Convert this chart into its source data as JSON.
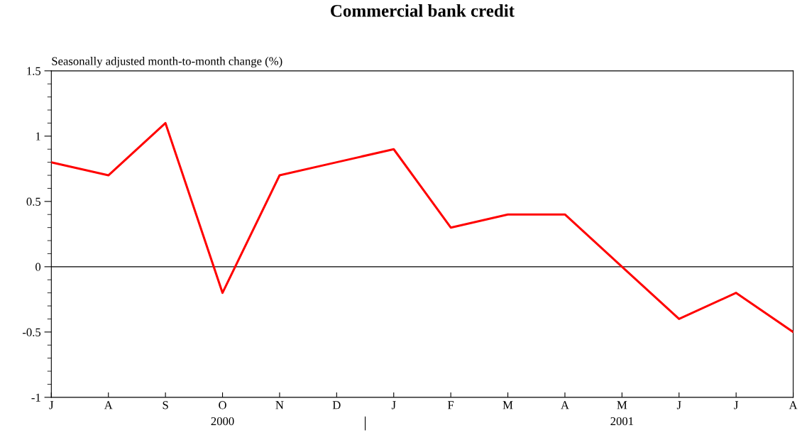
{
  "chart_data": {
    "type": "line",
    "title": "Commercial bank credit",
    "ylabel": "Seasonally adjusted month-to-month change (%)",
    "categories": [
      "J",
      "A",
      "S",
      "O",
      "N",
      "D",
      "J",
      "F",
      "M",
      "A",
      "M",
      "J",
      "J",
      "A"
    ],
    "series": [
      {
        "color": "#ff0000",
        "values": [
          0.8,
          0.7,
          1.1,
          -0.2,
          0.7,
          0.8,
          0.9,
          0.3,
          0.4,
          0.4,
          0.0,
          -0.4,
          -0.2,
          -0.5
        ]
      }
    ],
    "ylim": [
      -1,
      1.5
    ],
    "yticks": [
      {
        "value": -1,
        "label": "-1"
      },
      {
        "value": -0.5,
        "label": "-0.5"
      },
      0,
      0.5,
      1,
      1.5
    ],
    "ref_lines": [
      {
        "axis": "y",
        "value": 0,
        "color": "#000000"
      }
    ],
    "annotations": [
      "2000",
      "2001"
    ],
    "grid": false,
    "marker": "none",
    "line_style": "solid"
  }
}
